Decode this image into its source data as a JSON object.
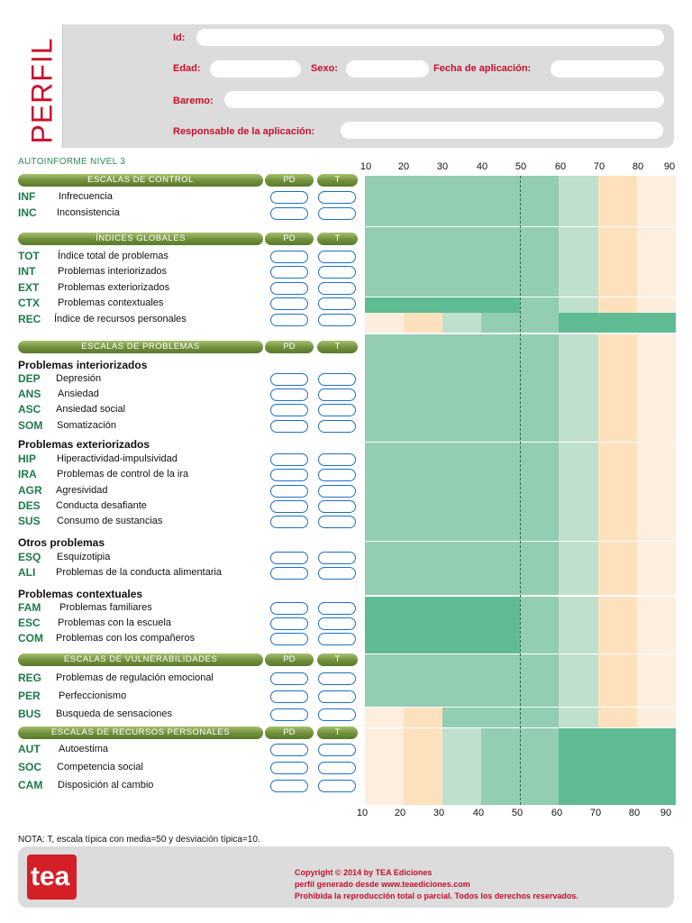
{
  "header": {
    "title": "PERFIL",
    "id_label": "Id:",
    "edad_label": "Edad:",
    "sexo_label": "Sexo:",
    "fecha_label": "Fecha de aplicación:",
    "baremo_label": "Baremo:",
    "responsable_label": "Responsable de la aplicación:",
    "id_value": "",
    "edad_value": "",
    "sexo_value": "",
    "fecha_value": "",
    "baremo_value": "",
    "responsable_value": ""
  },
  "subtitle": "AUTOINFORME NIVEL 3",
  "axis_ticks": [
    "10",
    "20",
    "30",
    "40",
    "50",
    "60",
    "70",
    "80",
    "90"
  ],
  "pd_label": "PD",
  "t_label": "T",
  "sections": [
    {
      "title": "ESCALAS DE CONTROL",
      "rows": [
        {
          "code": "INF",
          "name": "Infrecuencia"
        },
        {
          "code": "INC",
          "name": "Inconsistencia"
        }
      ]
    },
    {
      "title": "ÍNDICES GLOBALES",
      "rows": [
        {
          "code": "TOT",
          "name": "Índice total de problemas"
        },
        {
          "code": "INT",
          "name": "Problemas interiorizados"
        },
        {
          "code": "EXT",
          "name": "Problemas exteriorizados"
        },
        {
          "code": "CTX",
          "name": "Problemas contextuales"
        },
        {
          "code": "REC",
          "name": "Índice de recursos personales"
        }
      ]
    },
    {
      "title": "ESCALAS DE PROBLEMAS",
      "subgroups": [
        {
          "title": "Problemas interiorizados",
          "rows": [
            {
              "code": "DEP",
              "name": "Depresión"
            },
            {
              "code": "ANS",
              "name": "Ansiedad"
            },
            {
              "code": "ASC",
              "name": "Ansiedad social"
            },
            {
              "code": "SOM",
              "name": "Somatización"
            }
          ]
        },
        {
          "title": "Problemas exteriorizados",
          "rows": [
            {
              "code": "HIP",
              "name": "Hiperactividad-impulsividad"
            },
            {
              "code": "IRA",
              "name": "Problemas de control de la ira"
            },
            {
              "code": "AGR",
              "name": "Agresividad"
            },
            {
              "code": "DES",
              "name": "Conducta desafiante"
            },
            {
              "code": "SUS",
              "name": "Consumo de sustancias"
            }
          ]
        },
        {
          "title": "Otros problemas",
          "rows": [
            {
              "code": "ESQ",
              "name": "Esquizotipia"
            },
            {
              "code": "ALI",
              "name": "Problemas de la conducta alimentaria"
            }
          ]
        },
        {
          "title": "Problemas contextuales",
          "rows": [
            {
              "code": "FAM",
              "name": "Problemas familiares"
            },
            {
              "code": "ESC",
              "name": "Problemas con la escuela"
            },
            {
              "code": "COM",
              "name": "Problemas con los compañeros"
            }
          ]
        }
      ]
    },
    {
      "title": "ESCALAS DE VULNERABILIDADES",
      "rows": [
        {
          "code": "REG",
          "name": "Problemas de regulación emocional"
        },
        {
          "code": "PER",
          "name": "Perfeccionismo"
        },
        {
          "code": "BUS",
          "name": "Busqueda de sensaciones"
        }
      ]
    },
    {
      "title": "ESCALAS DE RECURSOS PERSONALES",
      "rows": [
        {
          "code": "AUT",
          "name": "Autoestima"
        },
        {
          "code": "SOC",
          "name": "Competencia social"
        },
        {
          "code": "CAM",
          "name": "Disposición al cambio"
        }
      ]
    }
  ],
  "note": "NOTA: T, escala típica con media=50 y desviación típica=10.",
  "footer": {
    "logo_text": "tea",
    "line1": "Copyright © 2014 by TEA Ediciones",
    "line2": "perfil generado desde www.teaediciones.com",
    "line3": "Prohibida la reproducción total o parcial. Todos los derechos reservados."
  },
  "colors": {
    "accent_red": "#c8102e",
    "code_green": "#1d7a4a",
    "pill_blue": "#1f6fc4",
    "band_light_green": "#bfe0cd",
    "band_mid_green": "#93cdb2",
    "band_dark_green": "#5fbb92",
    "band_peach": "#fde1bd",
    "band_light_peach": "#fdeedd"
  }
}
